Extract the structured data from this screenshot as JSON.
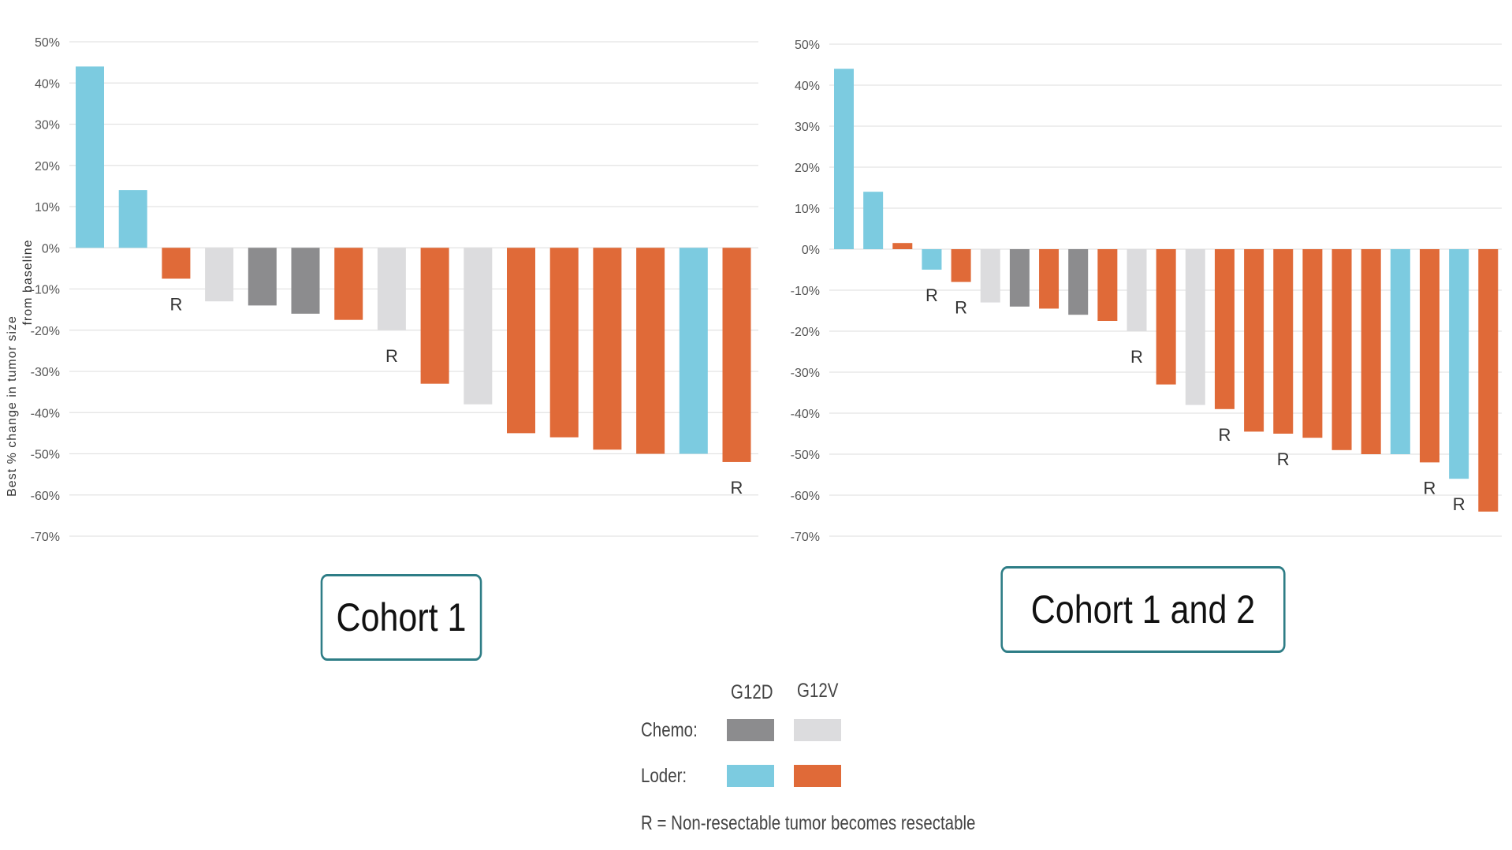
{
  "colors": {
    "chemo_g12d": "#8c8c8e",
    "chemo_g12v": "#dcdcde",
    "loder_g12d": "#7ccbe0",
    "loder_g12v": "#e06a38",
    "box_border": "#2e7d86"
  },
  "y_axis_label": [
    "Best % change in tumor size",
    "from baseline"
  ],
  "legend": {
    "col_g12d": "G12D",
    "col_g12v": "G12V",
    "row_chemo": "Chemo:",
    "row_loder": "Loder:",
    "footnote": "R = Non-resectable tumor becomes resectable"
  },
  "chart_data": [
    {
      "type": "bar",
      "title": "Cohort 1",
      "ylabel": "Best % change in tumor size from baseline",
      "ylim": [
        -70,
        50
      ],
      "yticks": [
        "50%",
        "40%",
        "30%",
        "20%",
        "10%",
        "0%",
        "-10%",
        "-20%",
        "-30%",
        "-40%",
        "-50%",
        "-60%",
        "-70%"
      ],
      "grid": true,
      "bars": [
        {
          "value": 44,
          "group": "loder_g12d",
          "resectable": false
        },
        {
          "value": 14,
          "group": "loder_g12d",
          "resectable": false
        },
        {
          "value": -7.5,
          "group": "loder_g12v",
          "resectable": true
        },
        {
          "value": -13,
          "group": "chemo_g12v",
          "resectable": false
        },
        {
          "value": -14,
          "group": "chemo_g12d",
          "resectable": false
        },
        {
          "value": -16,
          "group": "chemo_g12d",
          "resectable": false
        },
        {
          "value": -17.5,
          "group": "loder_g12v",
          "resectable": false
        },
        {
          "value": -20,
          "group": "chemo_g12v",
          "resectable": true
        },
        {
          "value": -33,
          "group": "loder_g12v",
          "resectable": false
        },
        {
          "value": -38,
          "group": "chemo_g12v",
          "resectable": false
        },
        {
          "value": -45,
          "group": "loder_g12v",
          "resectable": false
        },
        {
          "value": -46,
          "group": "loder_g12v",
          "resectable": false
        },
        {
          "value": -49,
          "group": "loder_g12v",
          "resectable": false
        },
        {
          "value": -50,
          "group": "loder_g12v",
          "resectable": false
        },
        {
          "value": -50,
          "group": "loder_g12d",
          "resectable": false
        },
        {
          "value": -52,
          "group": "loder_g12v",
          "resectable": true
        }
      ],
      "resectable_label": "R"
    },
    {
      "type": "bar",
      "title": "Cohort 1 and 2",
      "ylim": [
        -70,
        50
      ],
      "yticks": [
        "50%",
        "40%",
        "30%",
        "20%",
        "10%",
        "0%",
        "-10%",
        "-20%",
        "-30%",
        "-40%",
        "-50%",
        "-60%",
        "-70%"
      ],
      "grid": true,
      "bars": [
        {
          "value": 44,
          "group": "loder_g12d",
          "resectable": false
        },
        {
          "value": 14,
          "group": "loder_g12d",
          "resectable": false
        },
        {
          "value": 1.5,
          "group": "loder_g12v",
          "resectable": false
        },
        {
          "value": -5,
          "group": "loder_g12d",
          "resectable": true
        },
        {
          "value": -8,
          "group": "loder_g12v",
          "resectable": true
        },
        {
          "value": -13,
          "group": "chemo_g12v",
          "resectable": false
        },
        {
          "value": -14,
          "group": "chemo_g12d",
          "resectable": false
        },
        {
          "value": -14.5,
          "group": "loder_g12v",
          "resectable": false
        },
        {
          "value": -16,
          "group": "chemo_g12d",
          "resectable": false
        },
        {
          "value": -17.5,
          "group": "loder_g12v",
          "resectable": false
        },
        {
          "value": -20,
          "group": "chemo_g12v",
          "resectable": true
        },
        {
          "value": -33,
          "group": "loder_g12v",
          "resectable": false
        },
        {
          "value": -38,
          "group": "chemo_g12v",
          "resectable": false
        },
        {
          "value": -39,
          "group": "loder_g12v",
          "resectable": true
        },
        {
          "value": -44.5,
          "group": "loder_g12v",
          "resectable": false
        },
        {
          "value": -45,
          "group": "loder_g12v",
          "resectable": true
        },
        {
          "value": -46,
          "group": "loder_g12v",
          "resectable": false
        },
        {
          "value": -49,
          "group": "loder_g12v",
          "resectable": false
        },
        {
          "value": -50,
          "group": "loder_g12v",
          "resectable": false
        },
        {
          "value": -50,
          "group": "loder_g12d",
          "resectable": false
        },
        {
          "value": -52,
          "group": "loder_g12v",
          "resectable": true
        },
        {
          "value": -56,
          "group": "loder_g12d",
          "resectable": true
        },
        {
          "value": -64,
          "group": "loder_g12v",
          "resectable": false
        }
      ],
      "resectable_label": "R"
    }
  ]
}
